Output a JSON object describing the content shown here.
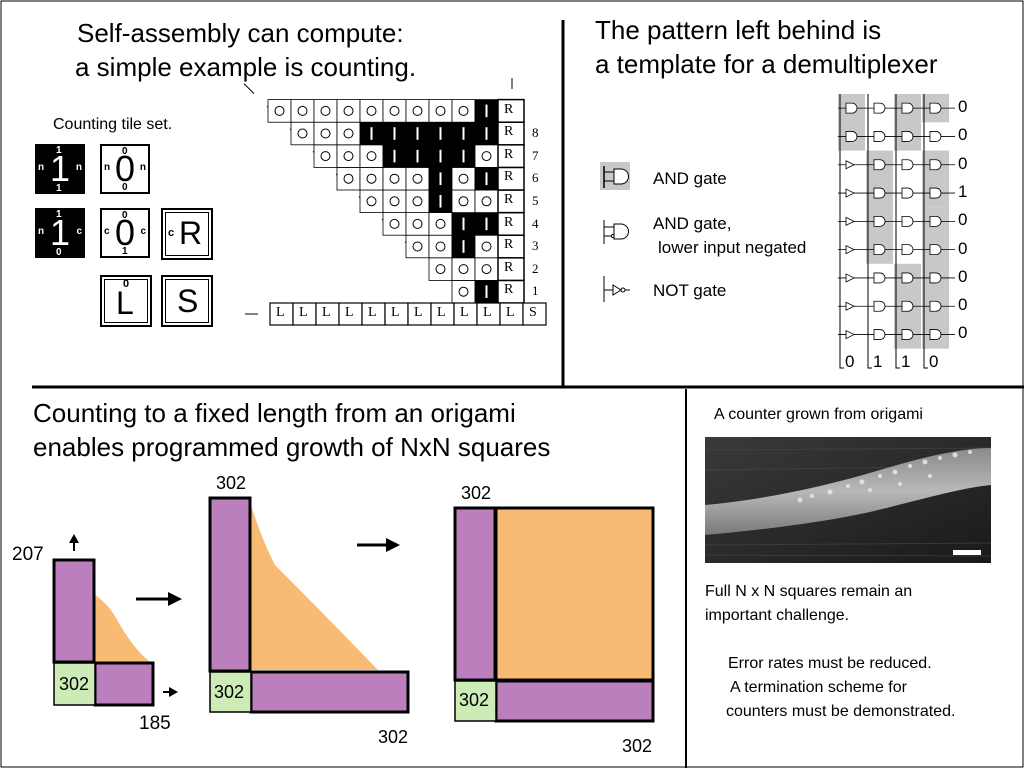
{
  "top_left": {
    "title_line1": "Self-assembly can compute:",
    "title_line2": "a simple example is counting.",
    "tile_set_label": "Counting tile set.",
    "tiles": {
      "black_one_n": {
        "value": "1",
        "top": "1",
        "bottom": "1",
        "left": "n",
        "right": "n"
      },
      "white_zero_n": {
        "value": "0",
        "top": "0",
        "bottom": "0",
        "left": "n",
        "right": "n"
      },
      "black_one_c": {
        "value": "1",
        "top": "1",
        "bottom": "0",
        "left": "n",
        "right": "c"
      },
      "white_zero_c": {
        "value": "0",
        "top": "0",
        "bottom": "1",
        "left": "c",
        "right": "c"
      },
      "r_tile": {
        "value": "R",
        "left": "c"
      },
      "l_tile": {
        "value": "L",
        "top": "0"
      },
      "s_tile": {
        "value": "S"
      }
    },
    "row_numbers": [
      "8",
      "7",
      "6",
      "5",
      "4",
      "3",
      "2",
      "1"
    ],
    "bottom_row": [
      "L",
      "L",
      "L",
      "L",
      "L",
      "L",
      "L",
      "L",
      "L",
      "L",
      "L",
      "S"
    ]
  },
  "top_right": {
    "title_line1": "The pattern left behind is",
    "title_line2": "a template for a demultiplexer",
    "legend": [
      {
        "label": "AND gate"
      },
      {
        "label": "AND gate,"
      },
      {
        "label": "lower input negated"
      },
      {
        "label": "NOT gate"
      }
    ],
    "outputs": [
      "0",
      "0",
      "0",
      "1",
      "0",
      "0",
      "0",
      "0",
      "0"
    ],
    "inputs": [
      "0",
      "1",
      "1",
      "0"
    ]
  },
  "bottom_left": {
    "title_line1": "Counting to a fixed length from an origami",
    "title_line2": "enables programmed growth of NxN squares",
    "diagram1": {
      "height_label": "207",
      "origami_label": "302",
      "width_label": "185"
    },
    "diagram2": {
      "height_label": "302",
      "origami_label": "302",
      "width_label": "302"
    },
    "diagram3": {
      "height_label": "302",
      "origami_label": "302",
      "width_label": "302"
    }
  },
  "bottom_right": {
    "image_caption": "A counter grown from origami",
    "note1_line1": "Full N x N squares remain an",
    "note1_line2": "important challenge.",
    "note2_line1": "Error rates must be reduced.",
    "note2_line2": "A termination scheme for",
    "note2_line3": "counters must be demonstrated."
  },
  "colors": {
    "purple": "#bb7fbd",
    "orange": "#f9bb74",
    "green": "#cdebb7",
    "gray_shade": "#c8c8c8"
  }
}
